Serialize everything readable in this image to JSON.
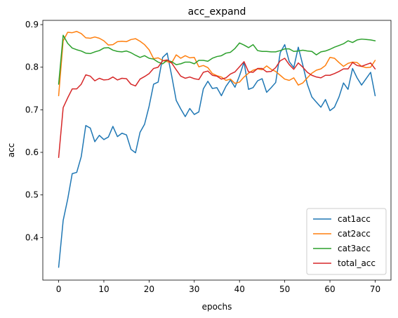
{
  "chart_data": {
    "type": "line",
    "title": "acc_expand",
    "xlabel": "epochs",
    "ylabel": "acc",
    "xlim": [
      -3.5,
      73.5
    ],
    "ylim": [
      0.3,
      0.91
    ],
    "xticks": [
      0,
      10,
      20,
      30,
      40,
      50,
      60,
      70
    ],
    "yticks": [
      0.4,
      0.5,
      0.6,
      0.7,
      0.8,
      0.9
    ],
    "xtick_labels": [
      "0",
      "10",
      "20",
      "30",
      "40",
      "50",
      "60",
      "70"
    ],
    "ytick_labels": [
      "0.4",
      "0.5",
      "0.6",
      "0.7",
      "0.8",
      "0.9"
    ],
    "grid": false,
    "legend_position": "lower-right",
    "x": [
      0,
      1,
      2,
      3,
      4,
      5,
      6,
      7,
      8,
      9,
      10,
      11,
      12,
      13,
      14,
      15,
      16,
      17,
      18,
      19,
      20,
      21,
      22,
      23,
      24,
      25,
      26,
      27,
      28,
      29,
      30,
      31,
      32,
      33,
      34,
      35,
      36,
      37,
      38,
      39,
      40,
      41,
      42,
      43,
      44,
      45,
      46,
      47,
      48,
      49,
      50,
      51,
      52,
      53,
      54,
      55,
      56,
      57,
      58,
      59,
      60,
      61,
      62,
      63,
      64,
      65,
      66,
      67,
      68,
      69,
      70
    ],
    "series": [
      {
        "name": "cat1acc",
        "color": "#1f77b4",
        "values": [
          0.33,
          0.44,
          0.49,
          0.55,
          0.553,
          0.59,
          0.663,
          0.657,
          0.625,
          0.64,
          0.63,
          0.636,
          0.661,
          0.637,
          0.645,
          0.641,
          0.607,
          0.599,
          0.647,
          0.666,
          0.708,
          0.76,
          0.765,
          0.823,
          0.833,
          0.78,
          0.722,
          0.702,
          0.684,
          0.703,
          0.689,
          0.695,
          0.749,
          0.767,
          0.75,
          0.752,
          0.733,
          0.755,
          0.77,
          0.753,
          0.78,
          0.812,
          0.748,
          0.752,
          0.768,
          0.773,
          0.741,
          0.752,
          0.764,
          0.834,
          0.853,
          0.813,
          0.799,
          0.847,
          0.805,
          0.76,
          0.73,
          0.718,
          0.706,
          0.724,
          0.698,
          0.706,
          0.73,
          0.763,
          0.748,
          0.797,
          0.775,
          0.758,
          0.773,
          0.788,
          0.733
        ]
      },
      {
        "name": "cat2acc",
        "color": "#ff7f0e",
        "values": [
          0.733,
          0.862,
          0.882,
          0.881,
          0.884,
          0.879,
          0.869,
          0.868,
          0.871,
          0.868,
          0.862,
          0.852,
          0.853,
          0.86,
          0.861,
          0.86,
          0.865,
          0.867,
          0.861,
          0.853,
          0.841,
          0.82,
          0.822,
          0.816,
          0.813,
          0.81,
          0.829,
          0.821,
          0.827,
          0.822,
          0.823,
          0.801,
          0.804,
          0.799,
          0.785,
          0.78,
          0.777,
          0.769,
          0.772,
          0.762,
          0.765,
          0.777,
          0.786,
          0.793,
          0.796,
          0.794,
          0.803,
          0.795,
          0.79,
          0.781,
          0.772,
          0.769,
          0.775,
          0.758,
          0.763,
          0.775,
          0.786,
          0.793,
          0.796,
          0.804,
          0.823,
          0.821,
          0.811,
          0.802,
          0.809,
          0.812,
          0.811,
          0.802,
          0.799,
          0.8,
          0.816
        ]
      },
      {
        "name": "cat3acc",
        "color": "#2ca02c",
        "values": [
          0.76,
          0.875,
          0.856,
          0.845,
          0.841,
          0.838,
          0.833,
          0.832,
          0.836,
          0.839,
          0.845,
          0.846,
          0.84,
          0.837,
          0.836,
          0.838,
          0.834,
          0.828,
          0.823,
          0.827,
          0.821,
          0.819,
          0.812,
          0.808,
          0.816,
          0.813,
          0.806,
          0.808,
          0.812,
          0.812,
          0.808,
          0.816,
          0.816,
          0.814,
          0.821,
          0.825,
          0.827,
          0.833,
          0.835,
          0.844,
          0.857,
          0.852,
          0.846,
          0.853,
          0.839,
          0.837,
          0.837,
          0.836,
          0.836,
          0.839,
          0.843,
          0.843,
          0.837,
          0.838,
          0.84,
          0.838,
          0.837,
          0.829,
          0.836,
          0.838,
          0.842,
          0.847,
          0.851,
          0.855,
          0.862,
          0.858,
          0.864,
          0.866,
          0.865,
          0.864,
          0.862
        ]
      },
      {
        "name": "total_acc",
        "color": "#d62728",
        "values": [
          0.588,
          0.705,
          0.728,
          0.749,
          0.749,
          0.76,
          0.782,
          0.779,
          0.768,
          0.774,
          0.77,
          0.771,
          0.777,
          0.77,
          0.774,
          0.773,
          0.76,
          0.756,
          0.772,
          0.778,
          0.785,
          0.797,
          0.8,
          0.815,
          0.817,
          0.81,
          0.794,
          0.779,
          0.774,
          0.777,
          0.773,
          0.771,
          0.788,
          0.791,
          0.781,
          0.779,
          0.772,
          0.775,
          0.784,
          0.789,
          0.801,
          0.813,
          0.789,
          0.788,
          0.797,
          0.797,
          0.789,
          0.79,
          0.799,
          0.815,
          0.821,
          0.806,
          0.795,
          0.81,
          0.8,
          0.788,
          0.781,
          0.777,
          0.775,
          0.781,
          0.781,
          0.785,
          0.79,
          0.796,
          0.796,
          0.811,
          0.804,
          0.802,
          0.806,
          0.81,
          0.796
        ]
      }
    ]
  }
}
